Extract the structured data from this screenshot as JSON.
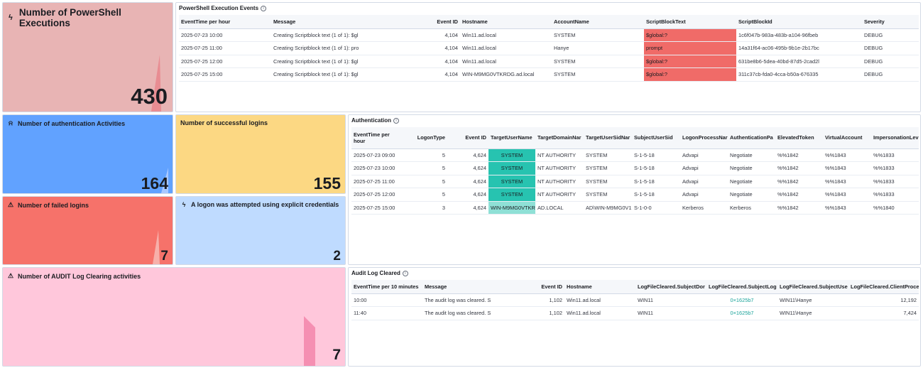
{
  "metrics": {
    "powershell": {
      "title": "Number of PowerShell Executions",
      "value": "430",
      "icon": "bolt-icon",
      "bg": "#e8b4b4",
      "spark": "#e88c92"
    },
    "auth": {
      "title": "Number of authentication Activities",
      "value": "164",
      "icon": "bell-icon",
      "bg": "#61a2ff",
      "spark": "#a8c8ff"
    },
    "success": {
      "title": "Number of successful logins",
      "value": "155",
      "bg": "#fcd883"
    },
    "failed": {
      "title": "Number of failed logins",
      "value": "7",
      "icon": "warning-icon",
      "bg": "#f6726a",
      "spark": "#f7b0aa"
    },
    "explicit": {
      "title": "A logon was attempted using explicit credentials",
      "value": "2",
      "icon": "bolt-icon",
      "bg": "#bfdbff"
    },
    "audit": {
      "title": "Number of AUDIT Log Clearing activities",
      "value": "7",
      "icon": "warning-icon",
      "bg": "#ffc7db",
      "spark": "#f58fb2"
    }
  },
  "powershell_table": {
    "title": "PowerShell Execution Events",
    "columns": [
      "EventTime per hour",
      "Message",
      "Event ID",
      "Hostname",
      "AccountName",
      "ScriptBlockText",
      "ScriptBlockId",
      "Severity"
    ],
    "rows": [
      [
        "2025-07-23 10:00",
        "Creating Scriptblock text (1 of 1): $gl",
        "4,104",
        "Win11.ad.local",
        "SYSTEM",
        "$global:?",
        "1c6f047b-983a-483b-a104-96fbeb",
        "DEBUG"
      ],
      [
        "2025-07-25 11:00",
        "Creating Scriptblock text (1 of 1): pro",
        "4,104",
        "Win11.ad.local",
        "Hanye",
        "prompt",
        "14a31f64-ac06-495b-9b1e-2b17bc",
        "DEBUG"
      ],
      [
        "2025-07-25 12:00",
        "Creating Scriptblock text (1 of 1): $gl",
        "4,104",
        "Win11.ad.local",
        "SYSTEM",
        "$global:?",
        "631be8b6-5dea-40bd-87d5-2cad2l",
        "DEBUG"
      ],
      [
        "2025-07-25 15:00",
        "Creating Scriptblock text (1 of 1): $gl",
        "4,104",
        "WIN-M9MG0VTKRDG.ad.local",
        "SYSTEM",
        "$global:?",
        "311c37cb-fda0-4cca-b50a-676335",
        "DEBUG"
      ]
    ]
  },
  "auth_table": {
    "title": "Authentication",
    "columns": [
      "EventTime per hour",
      "LogonType",
      "Event ID",
      "TargetUserName",
      "TargetDomainNar",
      "TargetUserSidNar",
      "SubjectUserSid",
      "LogonProcessNar",
      "AuthenticationPa",
      "ElevatedToken",
      "VirtualAccount",
      "ImpersonationLev"
    ],
    "rows": [
      [
        "2025-07-23 09:00",
        "5",
        "4,624",
        "SYSTEM",
        "NT AUTHORITY",
        "SYSTEM",
        "S-1-5-18",
        "Advapi",
        "Negotiate",
        "%%1842",
        "%%1843",
        "%%1833"
      ],
      [
        "2025-07-23 10:00",
        "5",
        "4,624",
        "SYSTEM",
        "NT AUTHORITY",
        "SYSTEM",
        "S-1-5-18",
        "Advapi",
        "Negotiate",
        "%%1842",
        "%%1843",
        "%%1833"
      ],
      [
        "2025-07-25 11:00",
        "5",
        "4,624",
        "SYSTEM",
        "NT AUTHORITY",
        "SYSTEM",
        "S-1-5-18",
        "Advapi",
        "Negotiate",
        "%%1842",
        "%%1843",
        "%%1833"
      ],
      [
        "2025-07-25 12:00",
        "5",
        "4,624",
        "SYSTEM",
        "NT AUTHORITY",
        "SYSTEM",
        "S-1-5-18",
        "Advapi",
        "Negotiate",
        "%%1842",
        "%%1843",
        "%%1833"
      ],
      [
        "2025-07-25 15:00",
        "3",
        "4,624",
        "WIN-M9MG0VTKR",
        "AD.LOCAL",
        "AD\\WIN-M9MG0V1",
        "S-1-0-0",
        "Kerberos",
        "Kerberos",
        "%%1842",
        "%%1843",
        "%%1840"
      ]
    ]
  },
  "audit_table": {
    "title": "Audit Log Cleared",
    "columns": [
      "EventTime per 10 minutes",
      "Message",
      "Event ID",
      "Hostname",
      "LogFileCleared.SubjectDor",
      "LogFileCleared.SubjectLog",
      "LogFileCleared.SubjectUse",
      "LogFileCleared.ClientProce"
    ],
    "rows": [
      [
        "10:00",
        "The audit log was cleared. S",
        "1,102",
        "Win11.ad.local",
        "WIN11",
        "0×1625b7",
        "WIN11\\Hanye",
        "12,192"
      ],
      [
        "11:40",
        "The audit log was cleared. S",
        "1,102",
        "Win11.ad.local",
        "WIN11",
        "0×1625b7",
        "WIN11\\Hanye",
        "7,424"
      ]
    ]
  }
}
